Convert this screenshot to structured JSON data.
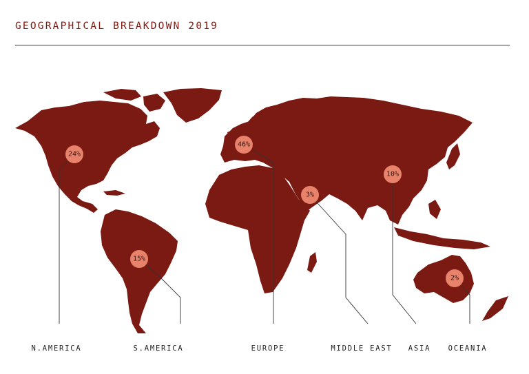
{
  "title": "GEOGRAPHICAL BREAKDOWN 2019",
  "colors": {
    "land": "#7a1a12",
    "title": "#7d1a12",
    "bubble": "#e8826a",
    "leader_line": "#333333"
  },
  "regions": [
    {
      "key": "north_america",
      "label": "N.AMERICA",
      "value": "24%"
    },
    {
      "key": "south_america",
      "label": "S.AMERICA",
      "value": "15%"
    },
    {
      "key": "europe",
      "label": "EUROPE",
      "value": "46%"
    },
    {
      "key": "middle_east",
      "label": "MIDDLE EAST",
      "value": "3%"
    },
    {
      "key": "asia",
      "label": "ASIA",
      "value": "10%"
    },
    {
      "key": "oceania",
      "label": "OCEANIA",
      "value": "2%"
    }
  ]
}
